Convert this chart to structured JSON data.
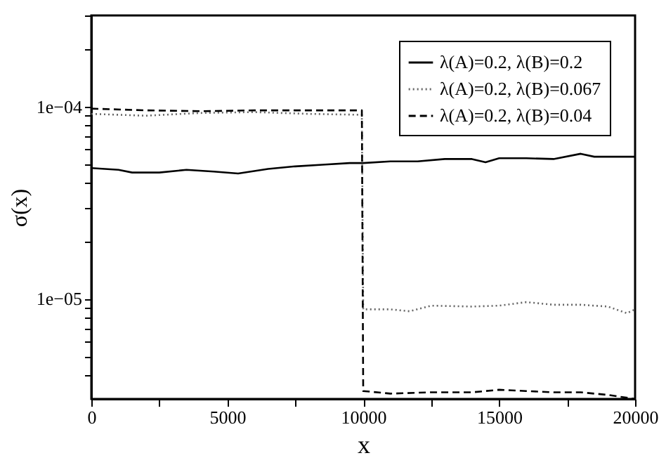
{
  "chart_data": {
    "type": "line",
    "xlabel": "x",
    "ylabel": "σ(x)",
    "log": "y",
    "grid": false,
    "legend": "top right",
    "marker": "none",
    "xlim": [
      0,
      20000
    ],
    "ylim": [
      3e-06,
      0.0003
    ],
    "xticks": [
      0,
      {
        "value": 2500,
        "label": null
      },
      5000,
      {
        "value": 7500,
        "label": null
      },
      10000,
      {
        "value": 12500,
        "label": null
      },
      15000,
      {
        "value": 17500,
        "label": null
      },
      20000
    ],
    "yticks": [
      {
        "value": 4e-06,
        "label": null
      },
      {
        "value": 5e-06,
        "label": null
      },
      {
        "value": 6e-06,
        "label": null
      },
      {
        "value": 7e-06,
        "label": null
      },
      {
        "value": 8e-06,
        "label": null
      },
      {
        "value": 9e-06,
        "label": null
      },
      {
        "value": 1e-05,
        "label": "1e−05"
      },
      {
        "value": 2e-05,
        "label": null
      },
      {
        "value": 3e-05,
        "label": null
      },
      {
        "value": 4e-05,
        "label": null
      },
      {
        "value": 5e-05,
        "label": null
      },
      {
        "value": 6e-05,
        "label": null
      },
      {
        "value": 7e-05,
        "label": null
      },
      {
        "value": 8e-05,
        "label": null
      },
      {
        "value": 9e-05,
        "label": null
      },
      {
        "value": 0.0001,
        "label": "1e−04"
      },
      {
        "value": 0.0002,
        "label": null
      },
      {
        "value": 0.0003,
        "label": null
      }
    ],
    "series": [
      {
        "name": "λ(A)=0.2, λ(B)=0.2",
        "color": "#000000",
        "line_style": "solid",
        "x": [
          0,
          1000,
          1500,
          2500,
          3500,
          4500,
          5400,
          6500,
          7500,
          8500,
          9500,
          10000,
          11000,
          12000,
          13000,
          14000,
          14500,
          15000,
          16000,
          17000,
          18000,
          18500,
          19000,
          20000
        ],
        "values": [
          4.8e-05,
          4.7e-05,
          4.55e-05,
          4.55e-05,
          4.7e-05,
          4.6e-05,
          4.5e-05,
          4.75e-05,
          4.9e-05,
          5e-05,
          5.1e-05,
          5.1e-05,
          5.2e-05,
          5.2e-05,
          5.35e-05,
          5.35e-05,
          5.15e-05,
          5.4e-05,
          5.4e-05,
          5.35e-05,
          5.7e-05,
          5.5e-05,
          5.5e-05,
          5.5e-05
        ]
      },
      {
        "name": "λ(A)=0.2, λ(B)=0.067",
        "color": "#666666",
        "line_style": "dotted",
        "x": [
          0,
          2000,
          4000,
          6000,
          8000,
          9950,
          10000,
          11000,
          11700,
          12500,
          14000,
          15000,
          16000,
          17000,
          18000,
          19000,
          19700,
          20000
        ],
        "values": [
          9.2e-05,
          9e-05,
          9.3e-05,
          9.4e-05,
          9.2e-05,
          9.1e-05,
          8.8e-06,
          8.8e-06,
          8.6e-06,
          9.2e-06,
          9.1e-06,
          9.2e-06,
          9.6e-06,
          9.3e-06,
          9.3e-06,
          9.1e-06,
          8.4e-06,
          8.8e-06
        ]
      },
      {
        "name": "λ(A)=0.2, λ(B)=0.04",
        "color": "#000000",
        "line_style": "dashed",
        "x": [
          0,
          2000,
          4000,
          6000,
          8000,
          9950,
          10000,
          11000,
          12500,
          14000,
          15000,
          16000,
          17000,
          18000,
          19000,
          20000
        ],
        "values": [
          9.8e-05,
          9.6e-05,
          9.5e-05,
          9.6e-05,
          9.6e-05,
          9.6e-05,
          3.3e-06,
          3.2e-06,
          3.25e-06,
          3.25e-06,
          3.35e-06,
          3.3e-06,
          3.25e-06,
          3.25e-06,
          3.15e-06,
          3e-06
        ]
      }
    ]
  }
}
